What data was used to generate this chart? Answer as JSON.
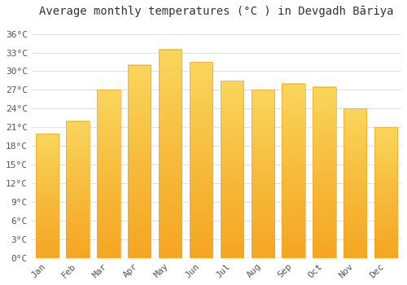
{
  "title": "Average monthly temperatures (°C ) in Devgadh Bāriya",
  "months": [
    "Jan",
    "Feb",
    "Mar",
    "Apr",
    "May",
    "Jun",
    "Jul",
    "Aug",
    "Sep",
    "Oct",
    "Nov",
    "Dec"
  ],
  "values": [
    20,
    22,
    27,
    31,
    33.5,
    31.5,
    28.5,
    27,
    28,
    27.5,
    24,
    21
  ],
  "bar_color_bottom": "#F5A623",
  "bar_color_mid": "#F7BC3D",
  "bar_color_top": "#FAD65C",
  "ylim": [
    0,
    38
  ],
  "yticks": [
    0,
    3,
    6,
    9,
    12,
    15,
    18,
    21,
    24,
    27,
    30,
    33,
    36
  ],
  "ytick_labels": [
    "0°C",
    "3°C",
    "6°C",
    "9°C",
    "12°C",
    "15°C",
    "18°C",
    "21°C",
    "24°C",
    "27°C",
    "30°C",
    "33°C",
    "36°C"
  ],
  "bg_color": "#FFFFFF",
  "grid_color": "#E0E0E0",
  "title_fontsize": 10,
  "tick_fontsize": 8,
  "bar_width": 0.75
}
